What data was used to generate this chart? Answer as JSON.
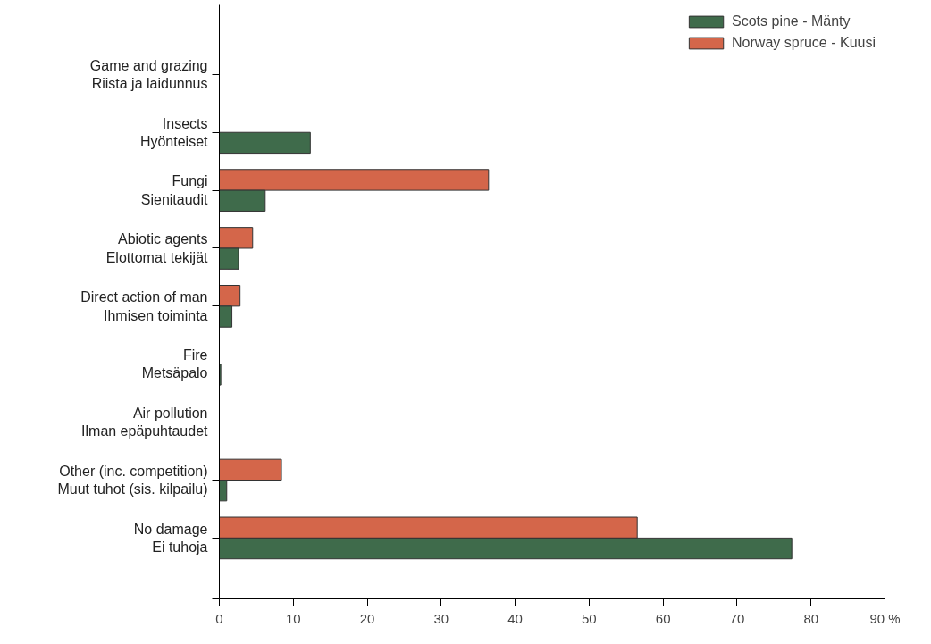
{
  "chart_data": {
    "type": "bar",
    "orientation": "horizontal",
    "categories": [
      "Game and grazing\nRiista ja laidunnus",
      "Insects\nHyönteiset",
      "Fungi\nSienitaudit",
      "Abiotic agents\nElottomat tekijät",
      "Direct action of man\nIhmisen toiminta",
      "Fire\nMetsäpalo",
      "Air pollution\nIlman epäpuhtaudet",
      "Other (inc. competition)\nMuut tuhot (sis. kilpailu)",
      "No damage\nEi tuhoja"
    ],
    "series": [
      {
        "name": "Norway spruce - Kuusi",
        "color": "#d4664a",
        "values": [
          null,
          null,
          36.4,
          4.5,
          2.8,
          null,
          null,
          8.4,
          56.5
        ]
      },
      {
        "name": "Scots pine - Mänty",
        "color": "#3f6b4b",
        "values": [
          null,
          12.3,
          6.2,
          2.6,
          1.7,
          0.2,
          null,
          1.0,
          77.4
        ]
      }
    ],
    "xlim": [
      0,
      90
    ],
    "xticks": [
      0,
      10,
      20,
      30,
      40,
      50,
      60,
      70,
      80,
      {
        "value": 90,
        "label": "90 %"
      }
    ],
    "grid": false,
    "legend": "top right"
  }
}
